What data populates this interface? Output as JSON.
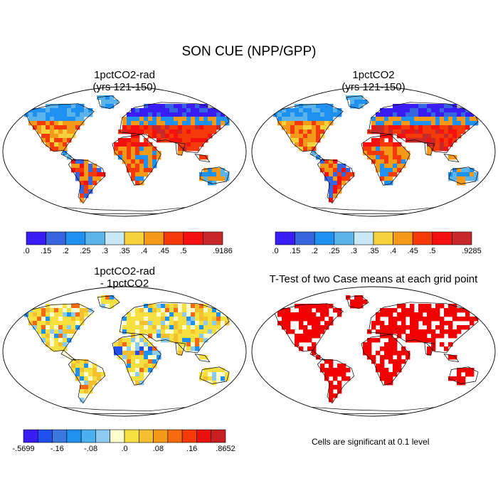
{
  "figure": {
    "title": "SON CUE (NPP/GPP)"
  },
  "panels": [
    {
      "id": "p1",
      "title_line1": "1pctCO2-rad",
      "title_line2": "(yrs 121-150)"
    },
    {
      "id": "p2",
      "title_line1": "1pctCO2",
      "title_line2": "(yrs 121-150)"
    },
    {
      "id": "p3",
      "title_line1": "1pctCO2-rad",
      "title_line2": "- 1pctCO2"
    },
    {
      "id": "p4",
      "title_line1": "T-Test of two Case means at each grid point",
      "title_line2": ""
    }
  ],
  "colorbars": [
    {
      "id": "cb1",
      "colors": [
        "#3a1df5",
        "#3765e0",
        "#1e90f0",
        "#5ab4ea",
        "#c9e8f5",
        "#f5d23c",
        "#f59a18",
        "#f53a0a",
        "#f51010",
        "#c8282a"
      ],
      "labels": [
        ".0",
        ".15",
        ".2",
        ".25",
        ".3",
        ".35",
        ".4",
        ".45",
        ".5",
        ".9186"
      ]
    },
    {
      "id": "cb2",
      "colors": [
        "#3a1df5",
        "#3765e0",
        "#1e90f0",
        "#5ab4ea",
        "#c9e8f5",
        "#f5d23c",
        "#f59a18",
        "#f53a0a",
        "#f51010",
        "#c8282a"
      ],
      "labels": [
        ".0",
        ".15",
        ".2",
        ".25",
        ".3",
        ".35",
        ".4",
        ".45",
        ".5",
        ".9285"
      ]
    },
    {
      "id": "cb3",
      "colors": [
        "#3a1df5",
        "#2050f0",
        "#3a78e0",
        "#1e90f0",
        "#4ab0f0",
        "#8ccaf0",
        "#ffffd0",
        "#f5e040",
        "#f5c030",
        "#f59a18",
        "#f56a10",
        "#f53a0a",
        "#e81010",
        "#c82020"
      ],
      "labels": [
        "-.5699",
        "-.16",
        "-.08",
        ".0",
        ".08",
        ".16",
        ".8652"
      ]
    }
  ],
  "ttest_note": "Cells are significant at 0.1 level",
  "colors": {
    "significant": "#f00000",
    "land_outline": "#000000"
  }
}
